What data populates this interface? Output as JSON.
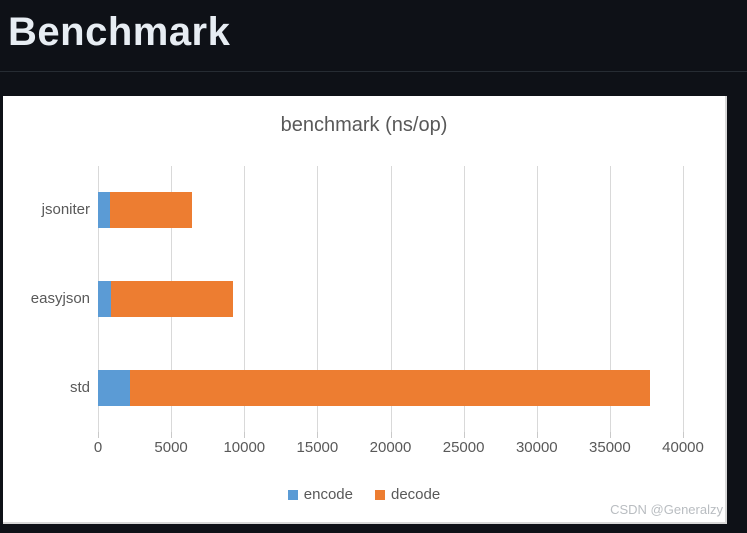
{
  "page": {
    "title": "Benchmark",
    "watermark": "CSDN @Generalzy"
  },
  "chart_data": {
    "type": "bar",
    "orientation": "horizontal",
    "stacked": true,
    "title": "benchmark (ns/op)",
    "categories": [
      "jsoniter",
      "easyjson",
      "std"
    ],
    "series": [
      {
        "name": "encode",
        "color": "#5B9BD5",
        "values": [
          837,
          883,
          2213
        ]
      },
      {
        "name": "decode",
        "color": "#ED7D31",
        "values": [
          5623,
          8367,
          35510
        ]
      }
    ],
    "xlim": [
      0,
      40000
    ],
    "xticks": [
      0,
      5000,
      10000,
      15000,
      20000,
      25000,
      30000,
      35000,
      40000
    ],
    "grid": true,
    "legend_position": "bottom"
  },
  "colors": {
    "page_background": "#0e1117",
    "heading_text": "#e7edf3",
    "divider": "#262c33",
    "panel_background": "#ffffff",
    "chart_text": "#595959",
    "gridline": "#d9d9d9",
    "watermark_text": "#b9bdc1",
    "encode": "#5B9BD5",
    "decode": "#ED7D31"
  }
}
